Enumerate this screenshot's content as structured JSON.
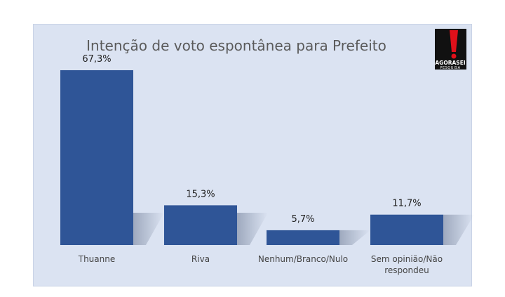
{
  "logo": {
    "brand": "AGORASEI",
    "sub": "PESQUISA"
  },
  "colors": {
    "bar": "#2f5597",
    "panel": "#dbe3f2",
    "logo_red": "#e0101a"
  },
  "chart_data": {
    "type": "bar",
    "title": "Intenção de voto espontânea para Prefeito",
    "categories": [
      "Thuanne",
      "Riva",
      "Nenhum/Branco/Nulo",
      "Sem opinião/Não respondeu"
    ],
    "values": [
      67.3,
      15.3,
      5.7,
      11.7
    ],
    "data_labels": [
      "67,3%",
      "15,3%",
      "5,7%",
      "11,7%"
    ],
    "ylim": [
      0,
      80
    ],
    "grid": false,
    "legend": "none"
  }
}
